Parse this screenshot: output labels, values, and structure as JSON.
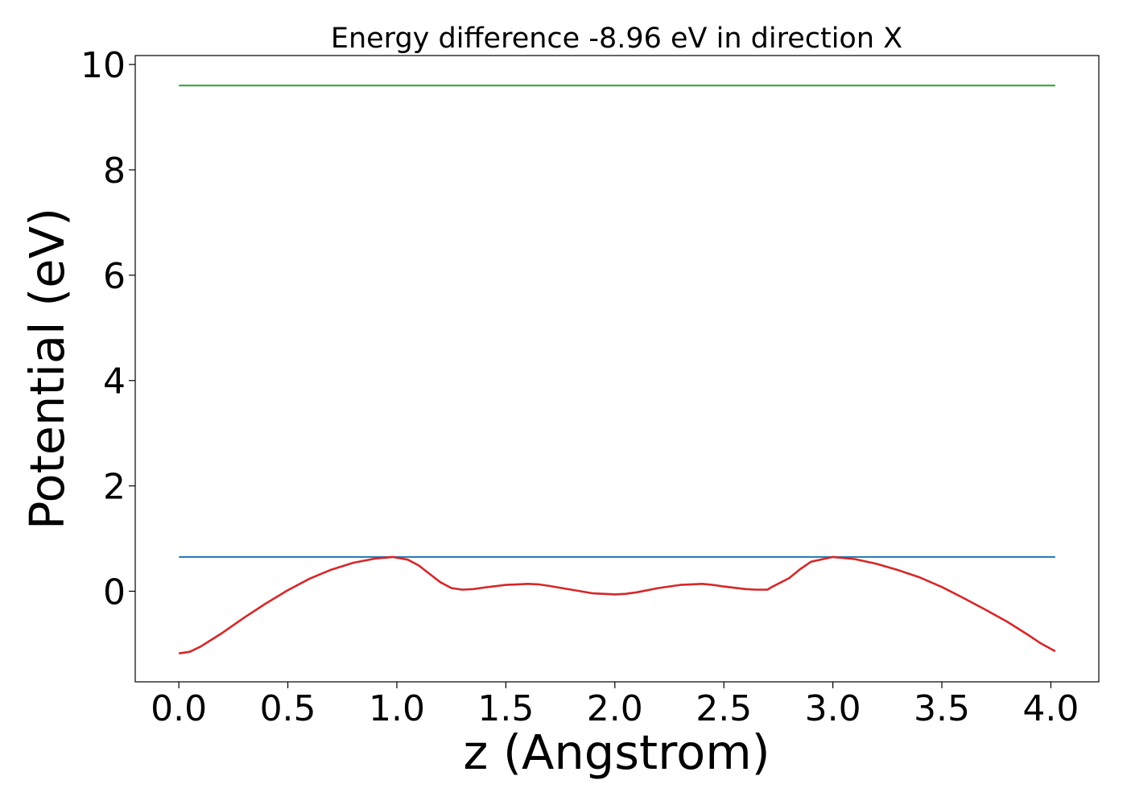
{
  "chart_data": {
    "type": "line",
    "title": "Energy difference -8.96 eV in direction X",
    "xlabel": "z (Angstrom)",
    "ylabel": "Potential (eV)",
    "xlim": [
      -0.2,
      4.22
    ],
    "ylim": [
      -1.72,
      10.17
    ],
    "xticks": [
      "0.0",
      "0.5",
      "1.0",
      "1.5",
      "2.0",
      "2.5",
      "3.0",
      "3.5",
      "4.0"
    ],
    "yticks": [
      "0",
      "2",
      "4",
      "6",
      "8",
      "10"
    ],
    "grid": false,
    "legend": "none",
    "series": [
      {
        "color": "#2ca02c",
        "x": [
          0.0,
          4.02
        ],
        "y": [
          9.6,
          9.6
        ]
      },
      {
        "color": "#1f77b4",
        "x": [
          0.0,
          4.02
        ],
        "y": [
          0.65,
          0.65
        ]
      },
      {
        "color": "#d62728",
        "x": [
          0.0,
          0.05,
          0.1,
          0.2,
          0.3,
          0.4,
          0.5,
          0.6,
          0.7,
          0.8,
          0.9,
          0.98,
          1.05,
          1.1,
          1.15,
          1.2,
          1.25,
          1.3,
          1.35,
          1.4,
          1.5,
          1.6,
          1.65,
          1.7,
          1.8,
          1.9,
          2.0,
          2.05,
          2.1,
          2.2,
          2.3,
          2.4,
          2.45,
          2.5,
          2.6,
          2.65,
          2.7,
          2.72,
          2.8,
          2.85,
          2.9,
          3.0,
          3.1,
          3.2,
          3.3,
          3.4,
          3.5,
          3.6,
          3.7,
          3.8,
          3.9,
          3.95,
          4.02
        ],
        "y": [
          -1.18,
          -1.15,
          -1.05,
          -0.79,
          -0.5,
          -0.23,
          0.02,
          0.24,
          0.41,
          0.54,
          0.62,
          0.65,
          0.6,
          0.49,
          0.33,
          0.17,
          0.06,
          0.03,
          0.04,
          0.07,
          0.12,
          0.14,
          0.13,
          0.1,
          0.03,
          -0.04,
          -0.06,
          -0.05,
          -0.02,
          0.06,
          0.12,
          0.14,
          0.12,
          0.09,
          0.04,
          0.03,
          0.03,
          0.08,
          0.25,
          0.42,
          0.56,
          0.65,
          0.61,
          0.52,
          0.4,
          0.26,
          0.08,
          -0.13,
          -0.35,
          -0.58,
          -0.84,
          -0.98,
          -1.14
        ]
      }
    ]
  }
}
